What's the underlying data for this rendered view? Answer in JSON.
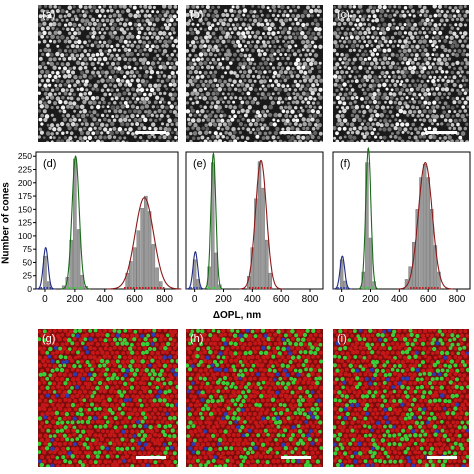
{
  "figure": {
    "top_panels": [
      {
        "label": "(a)"
      },
      {
        "label": "(b)"
      },
      {
        "label": "(c)"
      }
    ],
    "bottom_panels": [
      {
        "label": "(g)"
      },
      {
        "label": "(h)"
      },
      {
        "label": "(i)"
      }
    ],
    "colors": {
      "blue_cone": "#2b3bb8",
      "green_cone": "#38d038",
      "red_cone": "#c41818",
      "fit_blue": "#1f2a80",
      "fit_green": "#1a6a1a",
      "fit_red": "#8a1a1a",
      "bar": "#9a9a9a"
    }
  },
  "chart_data": [
    {
      "type": "bar",
      "panel_label": "(d)",
      "xlabel": "ΔOPL, nm",
      "ylabel": "Number of cones",
      "xlim": [
        -60,
        890
      ],
      "ylim": [
        0,
        258
      ],
      "xticks": [
        0,
        200,
        400,
        600,
        800
      ],
      "yticks": [
        0,
        25,
        50,
        75,
        100,
        125,
        150,
        175,
        200,
        225,
        250
      ],
      "bin_width": 25,
      "x": [
        0,
        25,
        125,
        150,
        175,
        200,
        225,
        250,
        275,
        550,
        575,
        600,
        625,
        650,
        675,
        700,
        725,
        750,
        775
      ],
      "values": [
        62,
        14,
        6,
        22,
        92,
        245,
        112,
        26,
        5,
        30,
        52,
        78,
        110,
        152,
        175,
        146,
        84,
        40,
        14
      ],
      "fits": [
        {
          "color": "blue",
          "amplitude": 78,
          "mean": 5,
          "sigma": 16
        },
        {
          "color": "green",
          "amplitude": 250,
          "mean": 205,
          "sigma": 24
        },
        {
          "color": "red",
          "amplitude": 172,
          "mean": 665,
          "sigma": 62
        }
      ]
    },
    {
      "type": "bar",
      "panel_label": "(e)",
      "xlabel": "ΔOPL, nm",
      "ylabel": "",
      "xlim": [
        -60,
        890
      ],
      "ylim": [
        0,
        258
      ],
      "xticks": [
        0,
        200,
        400,
        600,
        800
      ],
      "yticks": [],
      "bin_width": 25,
      "x": [
        0,
        25,
        100,
        125,
        150,
        175,
        375,
        400,
        425,
        450,
        475,
        500,
        525
      ],
      "values": [
        55,
        18,
        42,
        238,
        68,
        8,
        24,
        78,
        170,
        240,
        190,
        92,
        30
      ],
      "fits": [
        {
          "color": "blue",
          "amplitude": 70,
          "mean": 5,
          "sigma": 16
        },
        {
          "color": "green",
          "amplitude": 255,
          "mean": 130,
          "sigma": 17
        },
        {
          "color": "red",
          "amplitude": 242,
          "mean": 460,
          "sigma": 38
        }
      ]
    },
    {
      "type": "bar",
      "panel_label": "(f)",
      "xlabel": "ΔOPL, nm",
      "ylabel": "",
      "xlim": [
        -60,
        890
      ],
      "ylim": [
        0,
        258
      ],
      "xticks": [
        0,
        200,
        400,
        600,
        800
      ],
      "yticks": [],
      "bin_width": 25,
      "x": [
        0,
        25,
        150,
        175,
        200,
        225,
        450,
        475,
        500,
        525,
        550,
        575,
        600,
        625,
        650,
        675
      ],
      "values": [
        55,
        15,
        32,
        238,
        96,
        14,
        18,
        42,
        88,
        150,
        210,
        235,
        210,
        150,
        82,
        32
      ],
      "fits": [
        {
          "color": "blue",
          "amplitude": 62,
          "mean": 5,
          "sigma": 16
        },
        {
          "color": "green",
          "amplitude": 265,
          "mean": 185,
          "sigma": 18
        },
        {
          "color": "red",
          "amplitude": 238,
          "mean": 580,
          "sigma": 48
        }
      ]
    }
  ]
}
